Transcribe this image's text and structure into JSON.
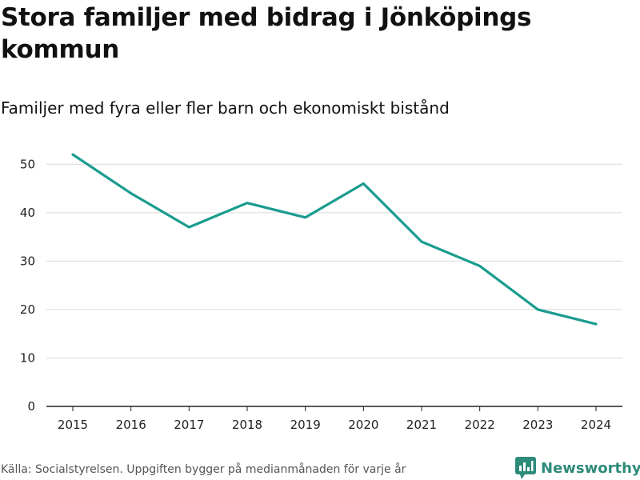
{
  "header": {
    "title": "Stora familjer med bidrag i Jönköpings kommun",
    "subtitle": "Familjer med fyra eller fler barn och ekonomiskt bistånd"
  },
  "footer": {
    "source": "Källa: Socialstyrelsen. Uppgiften bygger på medianmånaden för varje år",
    "brand": "Newsworthy"
  },
  "colors": {
    "line": "#1a9c8f",
    "grid": "#d9d9d9",
    "axis": "#222222",
    "brand": "#2e8b7a"
  },
  "chart_data": {
    "type": "line",
    "title": "Stora familjer med bidrag i Jönköpings kommun",
    "subtitle": "Familjer med fyra eller fler barn och ekonomiskt bistånd",
    "xlabel": "",
    "ylabel": "",
    "categories": [
      "2015",
      "2016",
      "2017",
      "2018",
      "2019",
      "2020",
      "2021",
      "2022",
      "2023",
      "2024"
    ],
    "series": [
      {
        "name": "Familjer",
        "values": [
          52,
          44,
          37,
          42,
          39,
          46,
          34,
          29,
          20,
          17
        ]
      }
    ],
    "ylim": [
      0,
      55
    ],
    "yticks": [
      0,
      10,
      20,
      30,
      40,
      50
    ],
    "grid": true,
    "legend": "none"
  }
}
